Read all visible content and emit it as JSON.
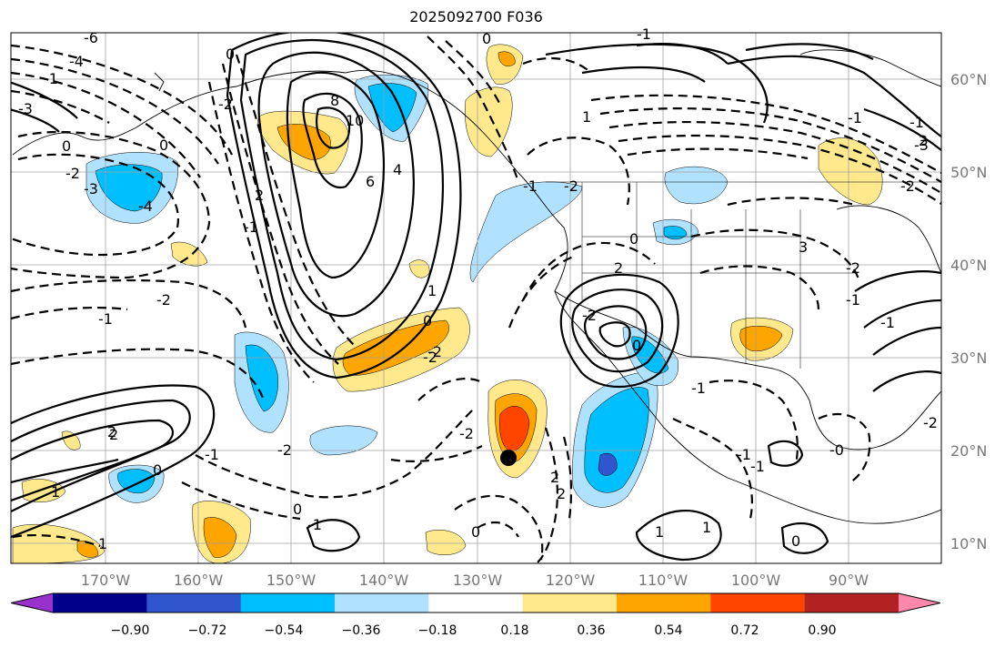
{
  "title": "2025092700 F036",
  "lat_labels": [
    "60°N",
    "50°N",
    "40°N",
    "30°N",
    "20°N",
    "10°N"
  ],
  "lon_labels": [
    "170°W",
    "160°W",
    "150°W",
    "140°W",
    "130°W",
    "120°W",
    "110°W",
    "100°W",
    "90°W"
  ],
  "colorbar": {
    "colors": [
      "#9932cc",
      "#00008b",
      "#3155cc",
      "#00bfff",
      "#b0e2ff",
      "#ffffff",
      "#ffe98c",
      "#ffa500",
      "#ff4500",
      "#b22222",
      "#ff88aa"
    ],
    "tick_labels": [
      "−0.90",
      "−0.72",
      "−0.54",
      "−0.36",
      "−0.18",
      "0.18",
      "0.36",
      "0.54",
      "0.72",
      "0.90"
    ]
  },
  "contour_labels": [
    "-6",
    "-4",
    "-1",
    "-3",
    "-2",
    "0",
    "2",
    "1",
    "-1",
    "-2",
    "-3",
    "-4",
    "8",
    "10",
    "6",
    "4",
    "-2",
    "-1",
    "2",
    "1",
    "-2",
    "0",
    "-2",
    "-2",
    "-2",
    "-1",
    "2",
    "0",
    "3",
    "-0",
    "0",
    "-1",
    "-2",
    "0",
    "-2",
    "2",
    "0",
    "1",
    "-1",
    "-1",
    "-1",
    "-2",
    "-3",
    "-1",
    "-2",
    "1",
    "0",
    "0",
    "2",
    "1",
    "0",
    "-2",
    "-1",
    "0",
    "2",
    "-1",
    "2",
    "1",
    "-1",
    "0",
    "-1",
    "-1"
  ],
  "marker": "storm-center"
}
